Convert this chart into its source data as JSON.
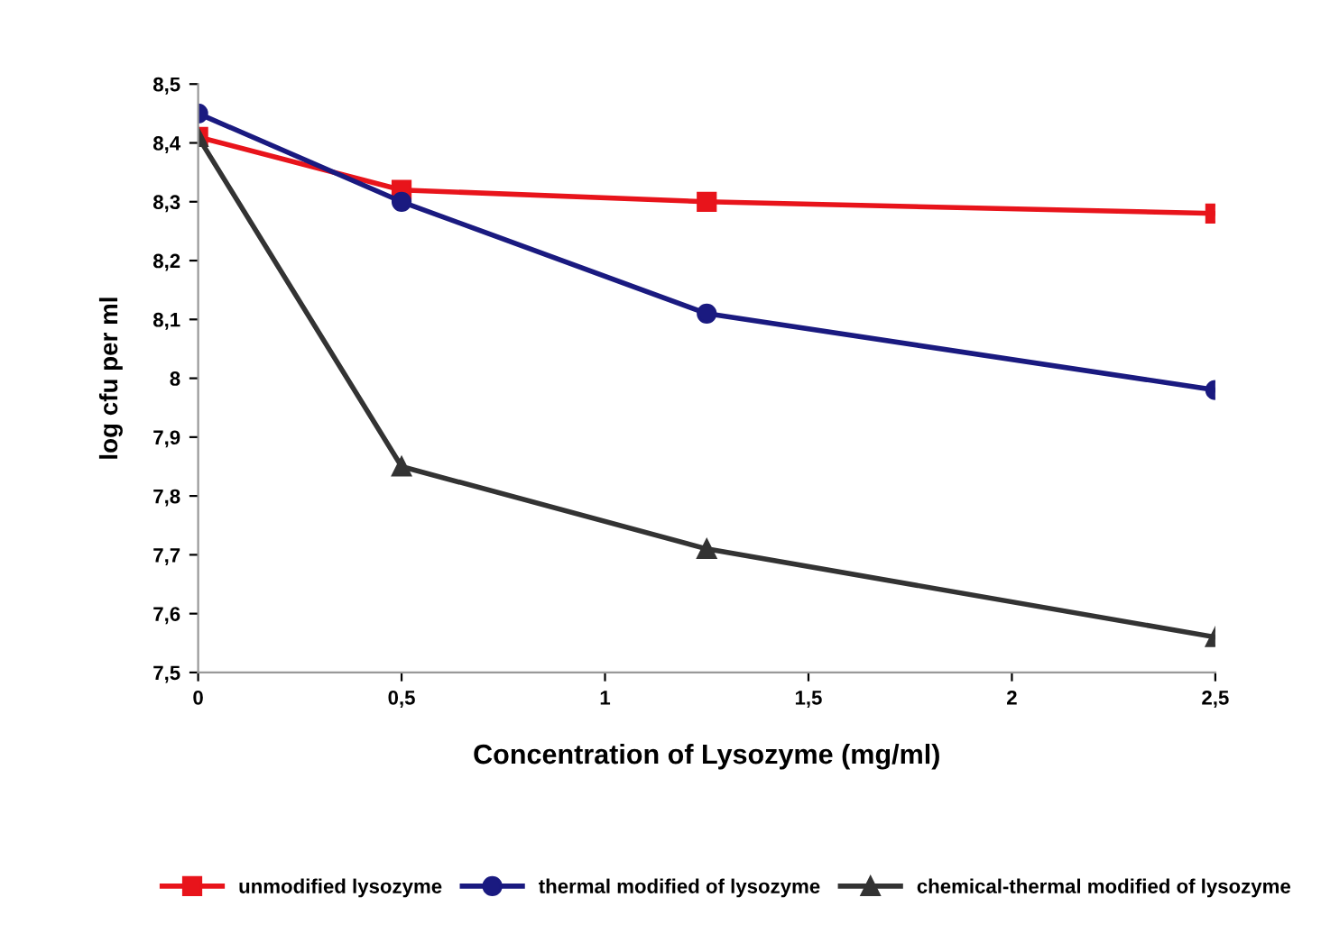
{
  "chart_data": {
    "type": "line",
    "xlabel": "Concentration of Lysozyme (mg/ml)",
    "ylabel": "log cfu per ml",
    "x": [
      0,
      0.5,
      1.25,
      2.5
    ],
    "series": [
      {
        "name": "unmodified lysozyme",
        "color": "#e8141b",
        "marker": "square",
        "values": [
          8.41,
          8.32,
          8.3,
          8.28
        ]
      },
      {
        "name": "thermal modified of lysozyme",
        "color": "#1a1a80",
        "marker": "circle",
        "values": [
          8.45,
          8.3,
          8.11,
          7.98
        ]
      },
      {
        "name": "chemical-thermal modified of lysozyme",
        "color": "#333333",
        "marker": "triangle",
        "values": [
          8.41,
          7.85,
          7.71,
          7.56
        ]
      }
    ],
    "xlim": [
      0,
      2.5
    ],
    "xticks": [
      0,
      {
        "value": 0.5,
        "label": "0,5"
      },
      1,
      {
        "value": 1.5,
        "label": "1,5"
      },
      2,
      {
        "value": 2.5,
        "label": "2,5"
      }
    ],
    "ylim": [
      7.5,
      8.5
    ],
    "yticks": [
      {
        "value": 7.5,
        "label": "7,5"
      },
      {
        "value": 7.6,
        "label": "7,6"
      },
      {
        "value": 7.7,
        "label": "7,7"
      },
      {
        "value": 7.8,
        "label": "7,8"
      },
      {
        "value": 7.9,
        "label": "7,9"
      },
      8,
      {
        "value": 8.1,
        "label": "8,1"
      },
      {
        "value": 8.2,
        "label": "8,2"
      },
      {
        "value": 8.3,
        "label": "8,3"
      },
      {
        "value": 8.4,
        "label": "8,4"
      },
      {
        "value": 8.5,
        "label": "8,5"
      }
    ],
    "grid": false,
    "legend": "bottom",
    "line_style": "solid"
  }
}
